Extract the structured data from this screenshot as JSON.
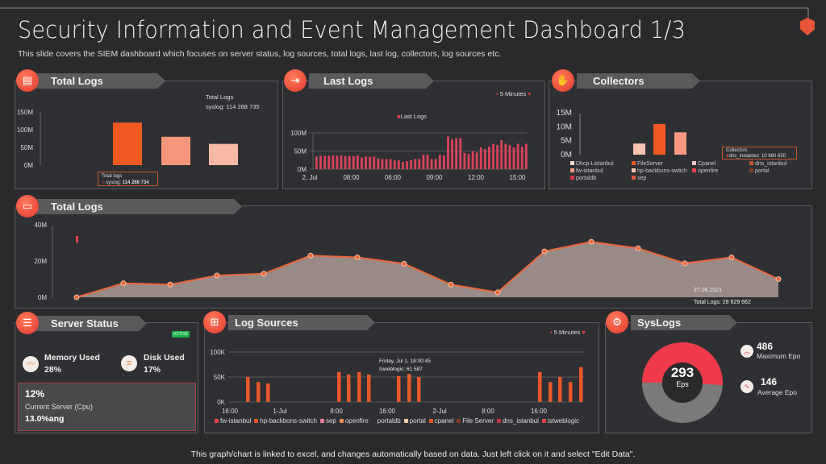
{
  "header": {
    "title": "Security Information and Event Management Dashboard 1/3",
    "subtitle": "This slide covers the SIEM dashboard which focuses on server  status, log sources, total logs, last log, collectors, log sources etc.",
    "shield_icon": "shield-icon"
  },
  "colors": {
    "accent": "#f05a22",
    "red": "#e8404e",
    "panel": "#2f3033",
    "header_bar": "#5a5a5c",
    "active": "#1fae4b"
  },
  "total_logs_bar": {
    "title": "Total Logs",
    "icon": "document-icon",
    "tooltip_top_title": "Total Logs",
    "tooltip_top_value": "syslog: 114 268 735",
    "tooltip_bottom_title": "Total logs",
    "tooltip_bottom_label": "syslog:",
    "tooltip_bottom_value": "114  268  734",
    "chart_data": {
      "type": "bar",
      "values": [
        120,
        80,
        60
      ],
      "colors": [
        "#f05a22",
        "#f5967a",
        "#f7b9a5"
      ],
      "ylim": [
        0,
        150
      ],
      "yticks": [
        "0M",
        "50M",
        "100M",
        "150M"
      ]
    }
  },
  "last_logs": {
    "title": "Last Logs",
    "icon": "login-icon",
    "interval": "5 Minutes",
    "legend": "Last Logs",
    "chart_data": {
      "type": "bar",
      "series": [
        {
          "name": "Last Logs",
          "values": [
            35,
            37,
            37,
            37,
            38,
            37,
            38,
            36,
            37,
            36,
            38,
            32,
            35,
            34,
            35,
            30,
            28,
            28,
            28,
            24,
            25,
            20,
            22,
            25,
            28,
            28,
            40,
            40,
            28,
            28,
            40,
            38,
            90,
            82,
            85,
            86,
            45,
            42,
            50,
            46,
            60,
            55,
            62,
            70,
            66,
            80,
            70,
            66,
            60,
            70,
            62,
            70
          ]
        }
      ],
      "ylim": [
        0,
        100
      ],
      "yticks": [
        "0M",
        "50M",
        "100M"
      ],
      "xticks": [
        "2, Jul",
        "08:00",
        "06:00",
        "09:00",
        "12:00",
        "15:00"
      ]
    }
  },
  "collectors": {
    "title": "Collectors",
    "icon": "hand-coin-icon",
    "tooltip_title": "Collectors",
    "tooltip_label": "dns_instanbul",
    "tooltip_value": "10 660 650",
    "legend": [
      {
        "label": "Dhcp-Listanbul",
        "color": "#f3d6cc"
      },
      {
        "label": "FileServer",
        "color": "#f05a22"
      },
      {
        "label": "Cpanel",
        "color": "#f7c2c9"
      },
      {
        "label": "dns_istanbul",
        "color": "#c5562b"
      },
      {
        "label": "fw-istanbul",
        "color": "#f59a80"
      },
      {
        "label": "hp-backbons-swtich",
        "color": "#f7c8b0"
      },
      {
        "label": "openfire",
        "color": "#e8404e"
      },
      {
        "label": "portal",
        "color": "#8a3b22"
      },
      {
        "label": "portaldb",
        "color": "#d2354a"
      },
      {
        "label": "sep",
        "color": "#e06040"
      }
    ],
    "chart_data": {
      "type": "bar",
      "values": [
        4,
        11,
        8
      ],
      "colors": [
        "#f7c2b0",
        "#f05a22",
        "#f59a80"
      ],
      "ylim": [
        0,
        15
      ],
      "yticks": [
        "0M",
        "5M",
        "10M",
        "15M"
      ]
    }
  },
  "total_logs_area": {
    "title": "Total Logs",
    "icon": "report-icon",
    "annotation_date": "27.06.2021",
    "annotation_total": "Total Logs: 28 629 662",
    "chart_data": {
      "type": "area",
      "values": [
        0,
        7.7,
        7,
        12,
        13,
        23,
        22,
        18.5,
        7,
        2.7,
        25.3,
        30.6,
        27,
        18.7,
        22,
        10
      ],
      "ylim": [
        0,
        40
      ],
      "yticks": [
        "0M",
        "20M",
        "40M"
      ]
    }
  },
  "server_status": {
    "title": "Server Status",
    "icon": "server-icon",
    "badge": "ACTIVE",
    "memory_label": "Memory Used",
    "memory_value": "28%",
    "disk_label": "Disk  Used",
    "disk_value": "17%",
    "cpu_value": "12%",
    "cpu_label": "Current Server (Cpu)",
    "cpu_avg": "13.0%ang"
  },
  "log_sources": {
    "title": "Log Sources",
    "icon": "network-icon",
    "interval": "5 Minutes",
    "tooltip_date": "Friday, Jul 1, 18:00:45",
    "tooltip_value": "Isweblogic: 61 587",
    "legend": [
      {
        "label": "fw-istanbul",
        "color": "#e8404e"
      },
      {
        "label": "hp-backbons-switch",
        "color": "#f05a22"
      },
      {
        "label": "sep",
        "color": "#e87a9a"
      },
      {
        "label": "openfire",
        "color": "#f08a50"
      },
      {
        "label": "portaldb",
        "color": "#2f3033"
      },
      {
        "label": "portal",
        "color": "#f7c8a0"
      },
      {
        "label": "cpanel",
        "color": "#f05a22"
      },
      {
        "label": "File Server",
        "color": "#8a3b22"
      },
      {
        "label": "dns_istanbul",
        "color": "#c0304a"
      },
      {
        "label": "istweblogic",
        "color": "#e8404e"
      }
    ],
    "chart_data": {
      "type": "bar",
      "values": [
        50,
        40,
        37,
        60,
        55,
        60,
        55,
        52,
        56,
        50,
        60,
        40,
        50,
        40,
        70
      ],
      "ylim": [
        0,
        100
      ],
      "yticks": [
        "0K",
        "50K",
        "100K"
      ],
      "xticks": [
        "16:00",
        "1-Jul",
        "8:00",
        "16:00",
        "2-Jul",
        "8:00",
        "16:00"
      ]
    }
  },
  "syslogs": {
    "title": "SysLogs",
    "icon": "gears-icon",
    "eps_value": "293",
    "eps_label": "Eps",
    "fill_fraction": 0.51,
    "max_value": "486",
    "max_label": "Maximum Epo",
    "avg_value": "146",
    "avg_label": "Average Epo"
  },
  "footer": {
    "note": "This graph/chart is linked to excel, and changes automatically based on data. Just left click on it and select \"Edit Data\"."
  }
}
